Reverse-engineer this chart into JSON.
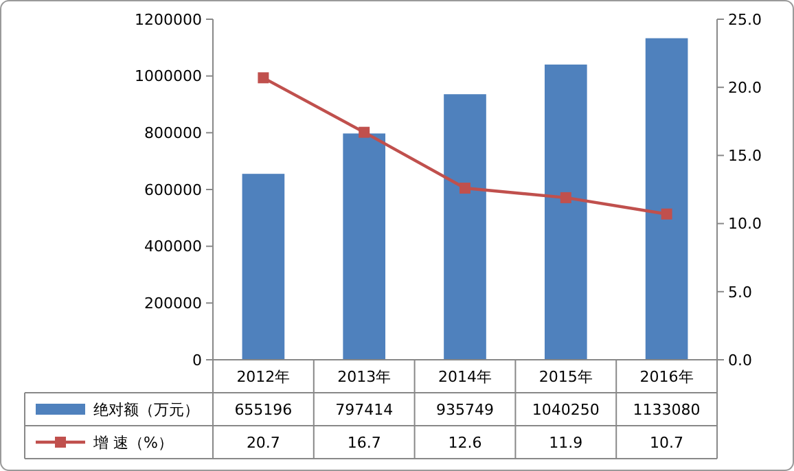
{
  "chart_data": {
    "type": "bar",
    "categories": [
      "2012年",
      "2013年",
      "2014年",
      "2015年",
      "2016年"
    ],
    "series": [
      {
        "name": "绝对额（万元）",
        "color": "#4f81bd",
        "values": [
          655196,
          797414,
          935749,
          1040250,
          1133080
        ]
      },
      {
        "name": "增 速（%）",
        "type": "line",
        "axis": "y2",
        "color": "#c0504d",
        "marker": "square",
        "values": [
          20.7,
          16.7,
          12.6,
          11.9,
          10.7
        ]
      }
    ],
    "ylim": [
      0,
      1200000
    ],
    "yticks": [
      0,
      200000,
      400000,
      600000,
      800000,
      1000000,
      1200000
    ],
    "y2lim": [
      0,
      25
    ],
    "y2ticks": [
      {
        "value": 0,
        "label": "0.0"
      },
      {
        "value": 5,
        "label": "5.0"
      },
      {
        "value": 10,
        "label": "10.0"
      },
      {
        "value": 15,
        "label": "15.0"
      },
      {
        "value": 20,
        "label": "20.0"
      },
      {
        "value": 25,
        "label": "25.0"
      }
    ],
    "data_labels": true,
    "legend": "bottom",
    "grid": false
  }
}
